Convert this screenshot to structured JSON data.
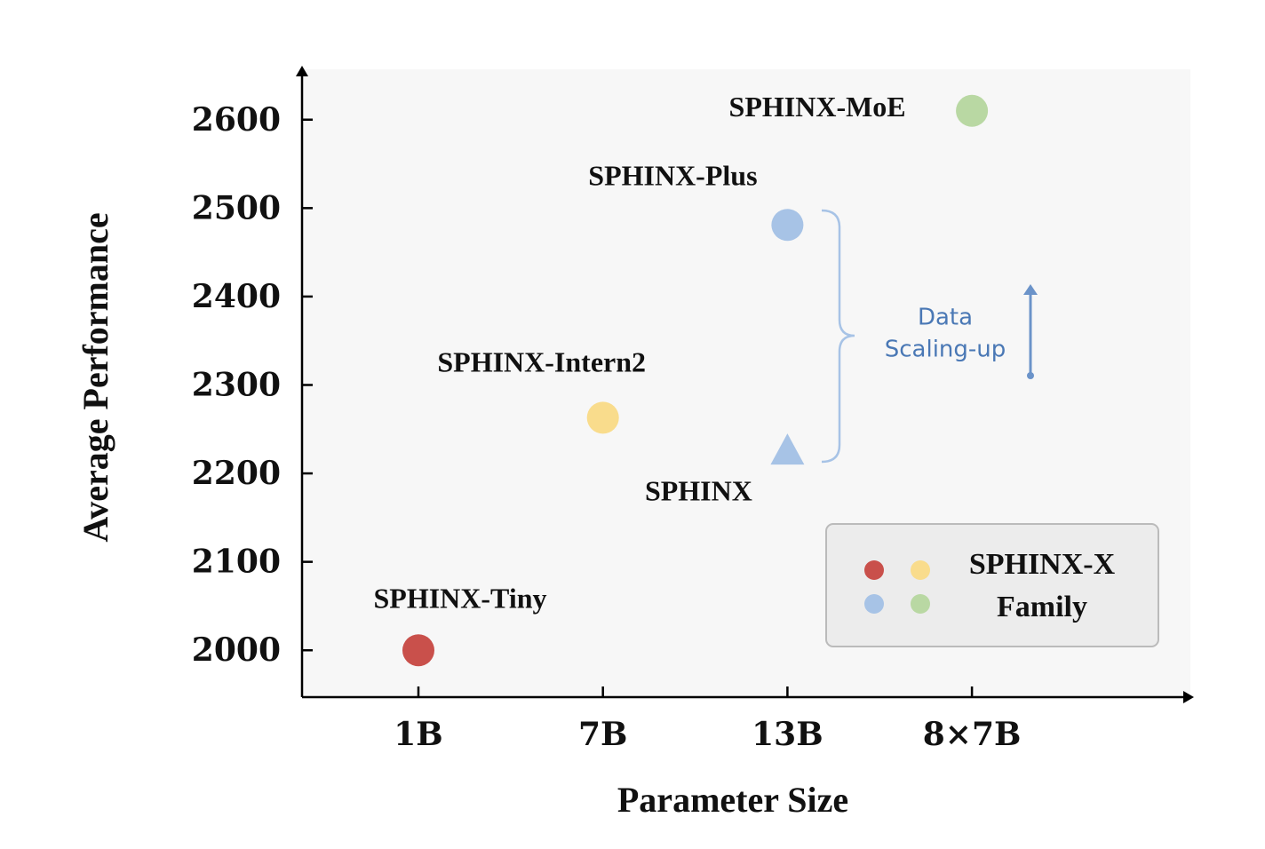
{
  "chart_data": {
    "type": "scatter",
    "x_label": "Parameter Size",
    "y_label": "Average Performance",
    "categories": [
      "1B",
      "7B",
      "13B",
      "8×7B"
    ],
    "ylim": [
      1947,
      2657
    ],
    "yticks": [
      2000,
      2100,
      2200,
      2300,
      2400,
      2500,
      2600
    ],
    "series": [
      {
        "name": "SPHINX-Tiny",
        "color": "#c9504b",
        "marker": "circle",
        "values": [
          2000,
          null,
          null,
          null
        ]
      },
      {
        "name": "SPHINX-Intern2",
        "color": "#f9dc8c",
        "marker": "circle",
        "values": [
          null,
          2263,
          null,
          null
        ]
      },
      {
        "name": "SPHINX",
        "color": "#a7c3e6",
        "marker": "triangle",
        "values": [
          null,
          null,
          2226,
          null
        ]
      },
      {
        "name": "SPHINX-Plus",
        "color": "#a7c3e6",
        "marker": "circle",
        "values": [
          null,
          null,
          2481,
          null
        ]
      },
      {
        "name": "SPHINX-MoE",
        "color": "#b9d8a3",
        "marker": "circle",
        "values": [
          null,
          null,
          null,
          2610
        ]
      }
    ],
    "legend": {
      "position": "lower right",
      "lines": [
        "SPHINX-X",
        "Family"
      ]
    },
    "annotation": {
      "lines": [
        "Data",
        "Scaling-up"
      ],
      "color": "#4a78b5"
    }
  }
}
